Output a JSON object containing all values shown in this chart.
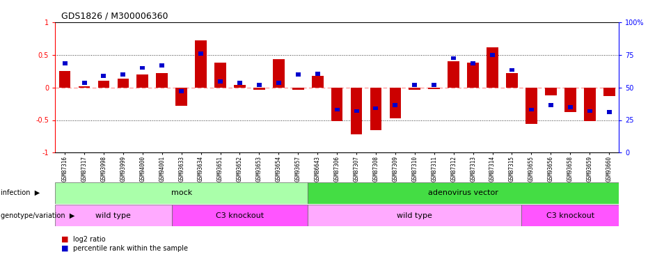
{
  "title": "GDS1826 / M300006360",
  "samples": [
    "GSM87316",
    "GSM87317",
    "GSM93998",
    "GSM93999",
    "GSM94000",
    "GSM94001",
    "GSM93633",
    "GSM93634",
    "GSM93651",
    "GSM93652",
    "GSM93653",
    "GSM93654",
    "GSM93657",
    "GSM86643",
    "GSM87306",
    "GSM87307",
    "GSM87308",
    "GSM87309",
    "GSM87310",
    "GSM87311",
    "GSM87312",
    "GSM87313",
    "GSM87314",
    "GSM87315",
    "GSM93655",
    "GSM93656",
    "GSM93658",
    "GSM93659",
    "GSM93660"
  ],
  "log2_ratio": [
    0.25,
    0.02,
    0.1,
    0.13,
    0.2,
    0.22,
    -0.28,
    0.72,
    0.38,
    0.04,
    -0.04,
    0.43,
    -0.04,
    0.18,
    -0.52,
    -0.72,
    -0.65,
    -0.47,
    -0.04,
    -0.02,
    0.4,
    0.38,
    0.62,
    0.22,
    -0.56,
    -0.12,
    -0.38,
    -0.52,
    -0.13
  ],
  "percentile_rank_scaled": [
    0.37,
    0.07,
    0.18,
    0.2,
    0.3,
    0.34,
    -0.06,
    0.52,
    0.09,
    0.07,
    0.04,
    0.07,
    0.2,
    0.21,
    -0.34,
    -0.36,
    -0.32,
    -0.27,
    0.04,
    0.04,
    0.45,
    0.37,
    0.5,
    0.27,
    -0.34,
    -0.27,
    -0.3,
    -0.36,
    -0.38
  ],
  "ylim": [
    -1.0,
    1.0
  ],
  "yticks_left": [
    -1.0,
    -0.5,
    0.0,
    0.5,
    1.0
  ],
  "ytick_labels_left": [
    "-1",
    "-0.5",
    "0",
    "0.5",
    "1"
  ],
  "yticks_right_vals": [
    0,
    25,
    50,
    75,
    100
  ],
  "ytick_labels_right": [
    "0",
    "25",
    "50",
    "75",
    "100%"
  ],
  "infection_groups": [
    {
      "label": "mock",
      "start": 0,
      "end": 13,
      "color": "#AAFFAA"
    },
    {
      "label": "adenovirus vector",
      "start": 13,
      "end": 29,
      "color": "#44DD44"
    }
  ],
  "genotype_groups": [
    {
      "label": "wild type",
      "start": 0,
      "end": 6,
      "color": "#FFAAFF"
    },
    {
      "label": "C3 knockout",
      "start": 6,
      "end": 13,
      "color": "#FF55FF"
    },
    {
      "label": "wild type",
      "start": 13,
      "end": 24,
      "color": "#FFAAFF"
    },
    {
      "label": "C3 knockout",
      "start": 24,
      "end": 29,
      "color": "#FF55FF"
    }
  ],
  "red_color": "#CC0000",
  "blue_color": "#0000CC",
  "hline_color": "#FF8888",
  "dotted_color": "#333333",
  "bg_color": "#FFFFFF",
  "legend_items": [
    "log2 ratio",
    "percentile rank within the sample"
  ],
  "infection_label": "infection",
  "genotype_label": "genotype/variation"
}
